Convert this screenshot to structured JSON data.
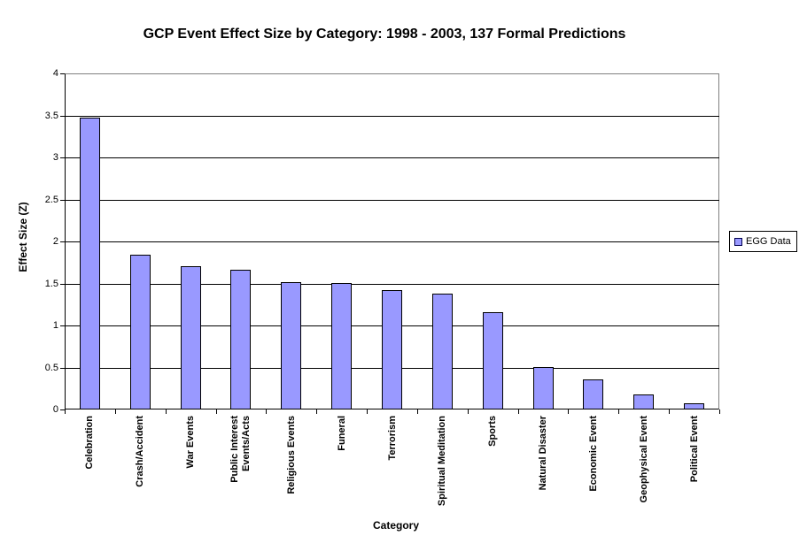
{
  "title": "GCP Event Effect Size by Category: 1998 - 2003, 137 Formal Predictions",
  "legend": {
    "label": "EGG Data"
  },
  "colors": {
    "bar_fill": "#9999FF",
    "bar_border": "#000000",
    "gridline": "#000000",
    "plot_border_gray": "#808080",
    "background": "#FFFFFF"
  },
  "chart_data": {
    "type": "bar",
    "title": "GCP Event Effect Size by Category: 1998 - 2003, 137 Formal Predictions",
    "xlabel": "Category",
    "ylabel": "Effect Size (Z)",
    "ylim": [
      0,
      4
    ],
    "ytick_step": 0.5,
    "ytick_labels": [
      "0",
      "0.5",
      "1",
      "1.5",
      "2",
      "2.5",
      "3",
      "3.5",
      "4"
    ],
    "grid": true,
    "legend_position": "right",
    "categories": [
      "Celebration",
      "Crash/Accident",
      "War Events",
      "Public Interest\nEvents/Acts",
      "Religious Events",
      "Funeral",
      "Terrorism",
      "Spiritual Meditation",
      "Sports",
      "Natural Disaster",
      "Economic Event",
      "Geophysical Event",
      "Political Event"
    ],
    "series": [
      {
        "name": "EGG Data",
        "values": [
          3.47,
          1.84,
          1.71,
          1.66,
          1.52,
          1.51,
          1.42,
          1.38,
          1.16,
          0.51,
          0.36,
          0.18,
          0.07
        ]
      }
    ]
  }
}
